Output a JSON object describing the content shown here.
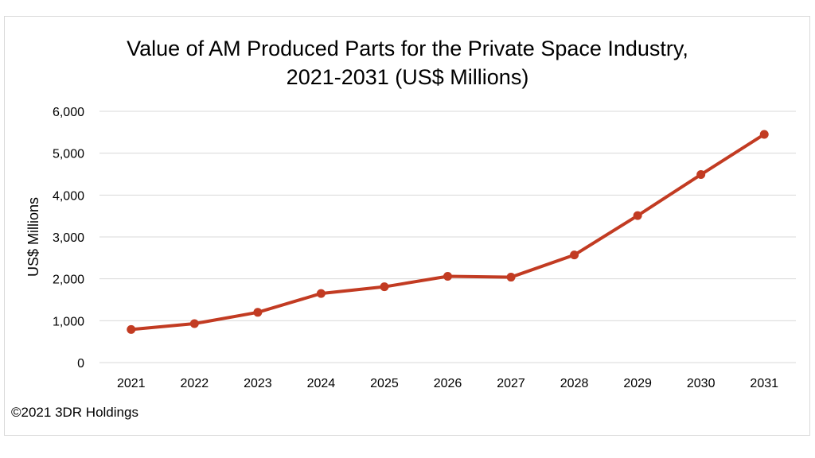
{
  "chart_data": {
    "type": "line",
    "title": "Value of AM Produced Parts for the Private Space Industry,",
    "subtitle": "2021-2031 (US$ Millions)",
    "xlabel": "",
    "ylabel": "US$ Millions",
    "categories": [
      "2021",
      "2022",
      "2023",
      "2024",
      "2025",
      "2026",
      "2027",
      "2028",
      "2029",
      "2030",
      "2031"
    ],
    "series": [
      {
        "values": [
          790,
          930,
          1200,
          1650,
          1810,
          2060,
          2040,
          2570,
          3510,
          4490,
          5450
        ],
        "color": "#c23b22"
      }
    ],
    "ylim": [
      0,
      6000
    ],
    "yticks": [
      0,
      1000,
      2000,
      3000,
      4000,
      5000,
      6000
    ],
    "ytick_labels": [
      "0",
      "1,000",
      "2,000",
      "3,000",
      "4,000",
      "5,000",
      "6,000"
    ],
    "grid": true,
    "legend": "none"
  },
  "footer": {
    "credit": "©2021 3DR Holdings"
  },
  "colors": {
    "series_line": "#c23b22",
    "gridline": "#d9d9d9",
    "frame": "#d9d9d9"
  }
}
